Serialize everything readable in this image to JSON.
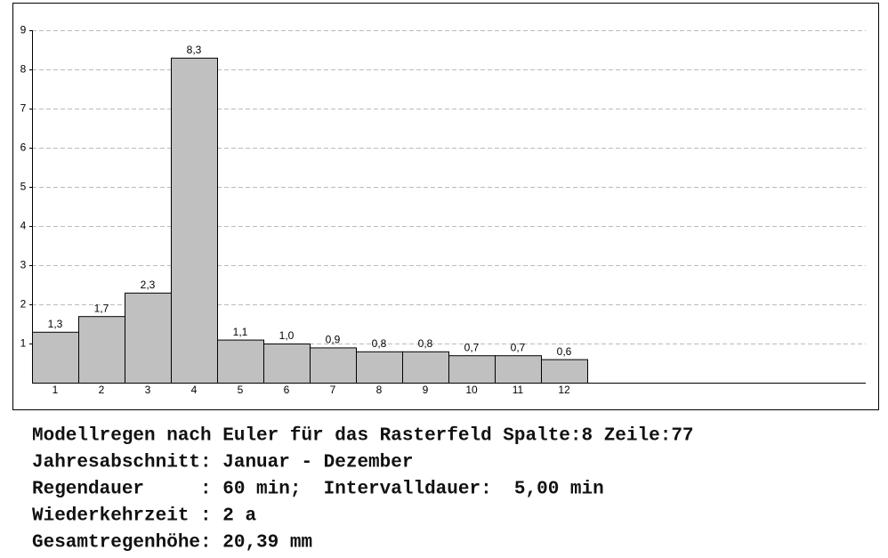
{
  "chart_data": {
    "type": "bar",
    "categories": [
      "1",
      "2",
      "3",
      "4",
      "5",
      "6",
      "7",
      "8",
      "9",
      "10",
      "11",
      "12",
      null,
      null,
      null,
      null,
      null,
      null
    ],
    "values": [
      1.3,
      1.7,
      2.3,
      8.3,
      1.1,
      1.0,
      0.9,
      0.8,
      0.8,
      0.7,
      0.7,
      0.6,
      null,
      null,
      null,
      null,
      null,
      null
    ],
    "value_labels": [
      "1,3",
      "1,7",
      "2,3",
      "8,3",
      "1,1",
      "1,0",
      "0,9",
      "0,8",
      "0,8",
      "0,7",
      "0,7",
      "0,6",
      null,
      null,
      null,
      null,
      null,
      null
    ],
    "color": "#c0c0c0",
    "ylim": [
      0,
      9
    ],
    "yticks": [
      1,
      2,
      3,
      4,
      5,
      6,
      7,
      8,
      9
    ],
    "grid": true
  },
  "info_lines": [
    "Modellregen nach Euler für das Rasterfeld Spalte:8 Zeile:77",
    "Jahresabschnitt: Januar - Dezember",
    "Regendauer     : 60 min;  Intervalldauer:  5,00 min",
    "Wiederkehrzeit : 2 a",
    "Gesamtregenhöhe: 20,39 mm"
  ]
}
